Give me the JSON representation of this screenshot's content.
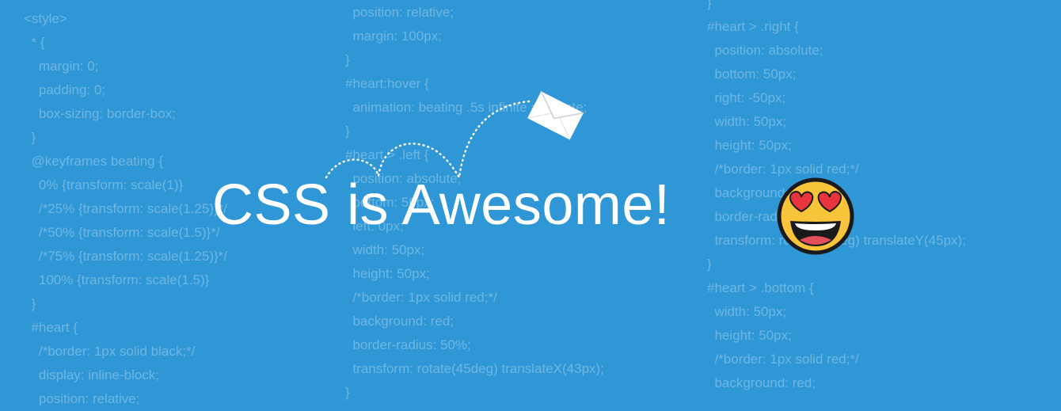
{
  "background_color": "#2f97d6",
  "code_columns": [
    {
      "lines": [
        "<style>",
        "  * {",
        "    margin: 0;",
        "    padding: 0;",
        "    box-sizing: border-box;",
        "  }",
        "  @keyframes beating {",
        "    0% {transform: scale(1)}",
        "    /*25% {transform: scale(1.25)}*/",
        "    /*50% {transform: scale(1.5)}*/",
        "    /*75% {transform: scale(1.25)}*/",
        "    100% {transform: scale(1.5)}",
        "  }",
        "  #heart {",
        "    /*border: 1px solid black;*/",
        "    display: inline-block;",
        "    position: relative;"
      ]
    },
    {
      "lines": [
        "  position: relative;",
        "  margin: 100px;",
        "}",
        "#heart:hover {",
        "  animation: beating .5s infinite alternate;",
        "}",
        "#heart > .left {",
        "  position: absolute;",
        "  bottom: 50px;",
        "  left: 0px;",
        "  width: 50px;",
        "  height: 50px;",
        "  /*border: 1px solid red;*/",
        "  background: red;",
        "  border-radius: 50%;",
        "  transform: rotate(45deg) translateX(43px);",
        "}"
      ]
    },
    {
      "lines": [
        "}",
        "#heart > .right {",
        "  position: absolute;",
        "  bottom: 50px;",
        "  right: -50px;",
        "  width: 50px;",
        "  height: 50px;",
        "  /*border: 1px solid red;*/",
        "  background: red;",
        "  border-radius: 50%;",
        "  transform: rotate(45deg) translateY(45px);",
        "}",
        "#heart > .bottom {",
        "  width: 50px;",
        "  height: 50px;",
        "  /*border: 1px solid red;*/",
        "  background: red;"
      ]
    }
  ],
  "headline": "CSS is Awesome!",
  "emoji_icon": "heart-eyes-face-icon",
  "envelope_icon": "envelope-icon",
  "colors": {
    "emoji_face": "#f7c43a",
    "emoji_hearts": "#e8343c",
    "text": "#ffffff"
  }
}
